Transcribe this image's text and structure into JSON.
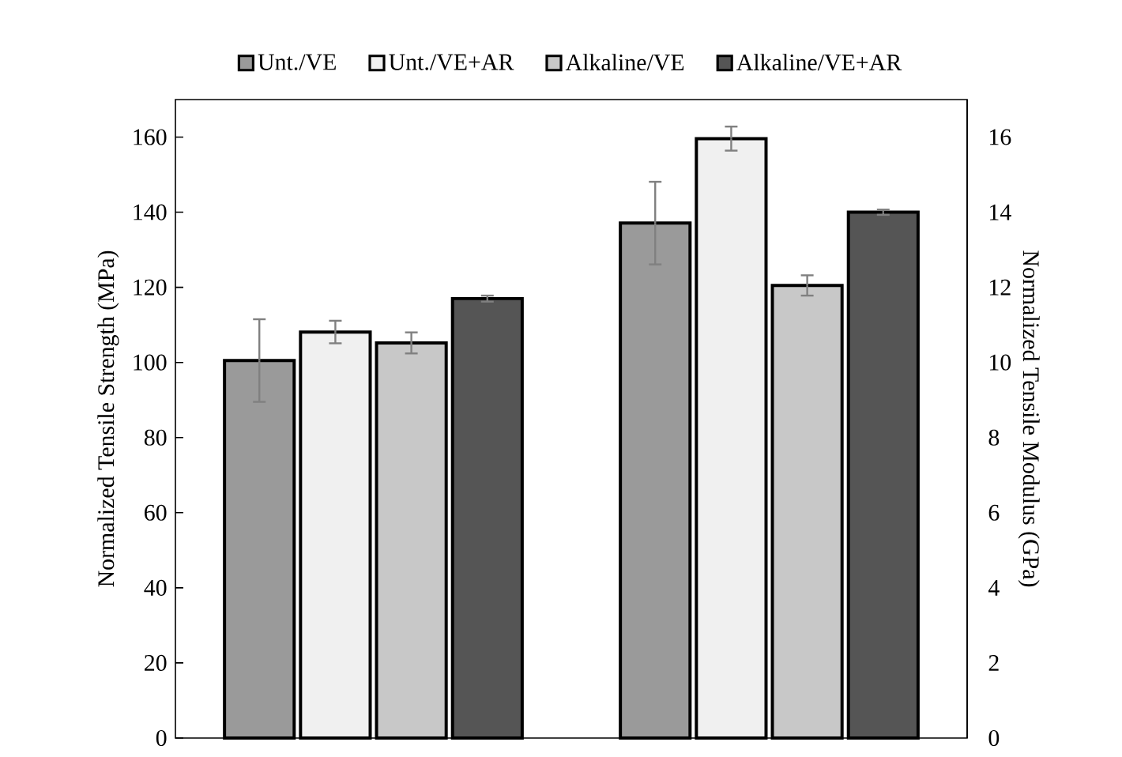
{
  "chart_data": {
    "type": "bar",
    "ylabel": "Normalized Tensile Strength (MPa)",
    "y2label": "Normalized Tensile Modulus (GPa)",
    "categories": [
      null,
      null
    ],
    "series": [
      {
        "name": "Unt./VE",
        "color": "#9a9a9a",
        "values": [
          100.5,
          137.1
        ],
        "errors": [
          11,
          11
        ]
      },
      {
        "name": "Unt./VE+AR",
        "color": "#f0f0f0",
        "values": [
          108.1,
          159.6
        ],
        "errors": [
          3,
          3.2
        ]
      },
      {
        "name": "Alkaline/VE",
        "color": "#c8c8c8",
        "values": [
          105.2,
          120.5
        ],
        "errors": [
          2.8,
          2.7
        ]
      },
      {
        "name": "Alkaline/VE+AR",
        "color": "#555555",
        "values": [
          117,
          140
        ],
        "errors": [
          0.8,
          0.7
        ]
      }
    ],
    "ylim": [
      0,
      170
    ],
    "yticks": [
      0,
      20,
      40,
      60,
      80,
      100,
      120,
      140,
      160
    ],
    "y2lim": [
      0,
      17
    ],
    "y2ticks": [
      0,
      2,
      4,
      6,
      8,
      10,
      12,
      14,
      16
    ],
    "legend": "top",
    "grid": false
  }
}
